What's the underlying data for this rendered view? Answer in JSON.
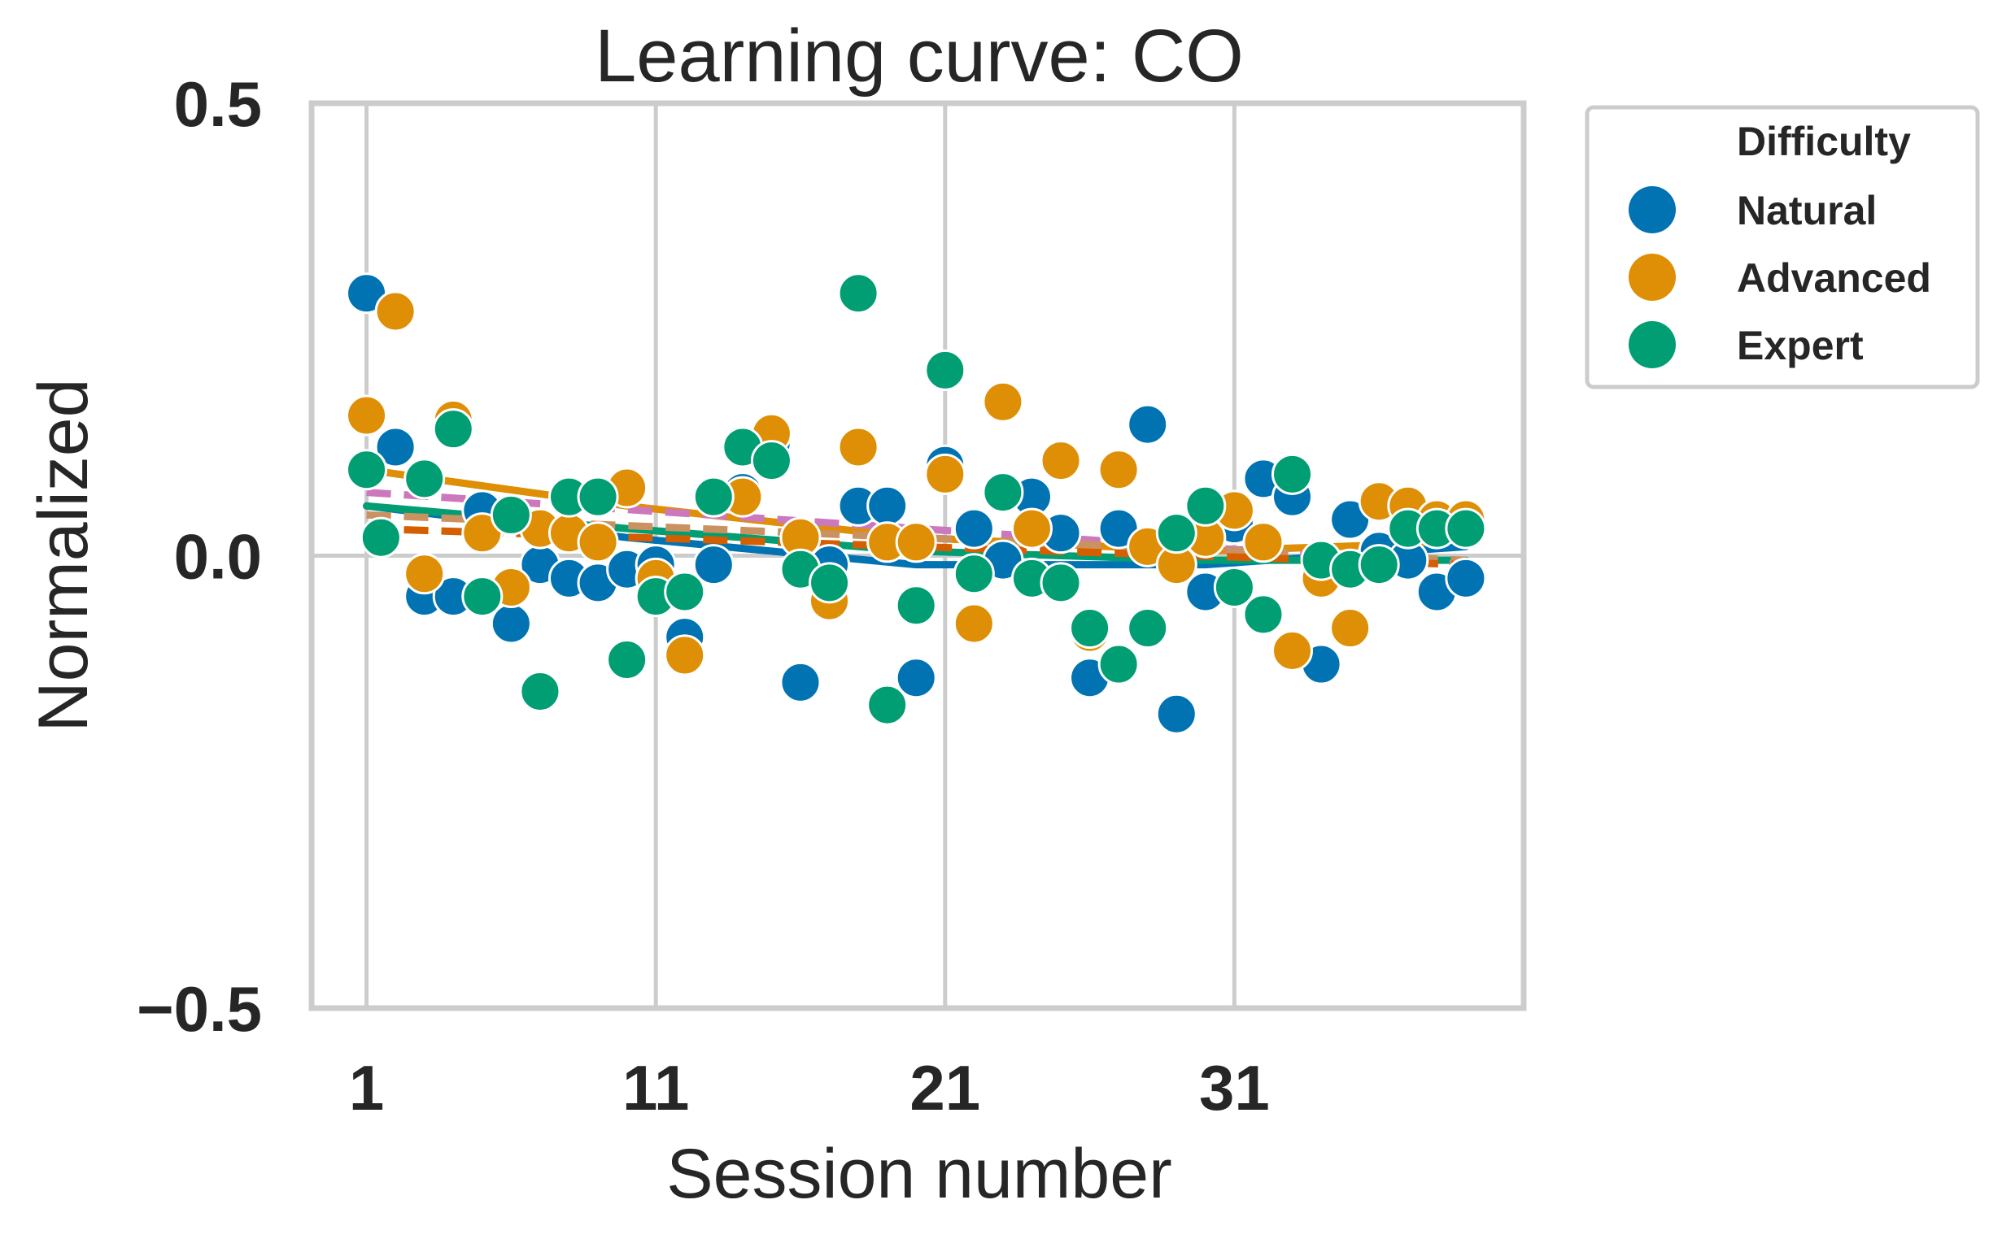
{
  "chart_data": {
    "type": "scatter",
    "title": "Learning curve: CO",
    "xlabel": "Session number",
    "ylabel": "Normalized",
    "xlim": [
      -0.9,
      41.0
    ],
    "ylim": [
      -0.5,
      0.5
    ],
    "xticks": [
      1,
      11,
      21,
      31
    ],
    "yticks": [
      -0.5,
      0.0,
      0.5
    ],
    "ytick_labels": [
      "−0.5",
      "0.0",
      "0.5"
    ],
    "grid": true,
    "legend": {
      "title": "Difficulty",
      "placement": "outside-upper-right"
    },
    "series": [
      {
        "name": "Natural",
        "color": "#0173b2",
        "x": [
          1,
          2,
          3,
          4,
          5,
          6,
          7,
          8,
          9,
          10,
          11,
          12,
          13,
          14,
          15,
          16,
          17,
          18,
          19,
          20,
          21,
          22,
          23,
          24,
          25,
          26,
          27,
          28,
          29,
          30,
          31,
          32,
          33,
          34,
          35,
          36,
          37,
          38,
          39
        ],
        "y": [
          0.29,
          0.12,
          -0.045,
          -0.045,
          0.05,
          -0.075,
          -0.01,
          -0.025,
          -0.03,
          -0.015,
          -0.01,
          -0.09,
          -0.01,
          0.07,
          0.125,
          -0.14,
          -0.01,
          0.055,
          0.055,
          -0.135,
          0.1,
          0.03,
          -0.005,
          0.065,
          0.025,
          -0.135,
          0.03,
          0.145,
          -0.175,
          -0.04,
          0.035,
          0.085,
          0.065,
          -0.12,
          0.04,
          0.005,
          -0.005,
          -0.04,
          -0.025
        ]
      },
      {
        "name": "Advanced",
        "color": "#de8f05",
        "x": [
          1,
          2,
          3,
          4,
          5,
          6,
          7,
          8,
          9,
          10,
          11,
          12,
          13,
          14,
          15,
          16,
          17,
          18,
          19,
          20,
          21,
          22,
          23,
          24,
          25,
          26,
          27,
          28,
          29,
          30,
          31,
          32,
          33,
          34,
          35,
          36,
          37,
          38,
          39
        ],
        "y": [
          0.155,
          0.27,
          -0.02,
          0.15,
          0.025,
          -0.035,
          0.03,
          0.025,
          0.015,
          0.075,
          -0.025,
          -0.11,
          0.065,
          0.065,
          0.135,
          0.02,
          -0.05,
          0.12,
          0.015,
          0.015,
          0.09,
          -0.075,
          0.17,
          0.03,
          0.105,
          -0.085,
          0.095,
          0.01,
          -0.01,
          0.02,
          0.05,
          0.015,
          -0.105,
          -0.025,
          -0.08,
          0.06,
          0.055,
          0.04,
          0.04
        ]
      },
      {
        "name": "Expert",
        "color": "#029e73",
        "x": [
          1,
          1.5,
          3,
          4,
          5,
          6,
          7,
          8,
          9,
          10,
          11,
          12,
          13,
          14,
          15,
          16,
          17,
          18,
          19,
          20,
          21,
          22,
          23,
          24,
          25,
          26,
          27,
          28,
          29,
          30,
          31,
          32,
          33,
          34,
          35,
          36,
          37,
          38,
          39
        ],
        "y": [
          0.095,
          0.02,
          0.085,
          0.14,
          -0.045,
          0.045,
          -0.15,
          0.065,
          0.065,
          -0.115,
          -0.045,
          -0.04,
          0.065,
          0.12,
          0.105,
          -0.015,
          -0.03,
          0.29,
          -0.165,
          -0.055,
          0.205,
          -0.02,
          0.07,
          -0.025,
          -0.03,
          -0.08,
          -0.12,
          -0.08,
          0.025,
          0.055,
          -0.035,
          -0.065,
          0.09,
          -0.005,
          -0.015,
          -0.01,
          0.03,
          0.03,
          0.03
        ]
      }
    ],
    "fit_lines": [
      {
        "style": "solid",
        "color": "#de8f05",
        "x": [
          1,
          10,
          20,
          30,
          39
        ],
        "y": [
          0.095,
          0.055,
          0.02,
          0.005,
          0.015
        ]
      },
      {
        "style": "solid",
        "color": "#0173b2",
        "x": [
          1,
          10,
          20,
          30,
          39
        ],
        "y": [
          0.055,
          0.02,
          -0.01,
          -0.01,
          0.01
        ]
      },
      {
        "style": "solid",
        "color": "#029e73",
        "x": [
          1,
          10,
          20,
          30,
          39
        ],
        "y": [
          0.055,
          0.03,
          0.005,
          -0.005,
          -0.005
        ]
      },
      {
        "style": "dashed",
        "color": "#cc78bc",
        "x": [
          1,
          39
        ],
        "y": [
          0.07,
          -0.01
        ]
      },
      {
        "style": "dashed",
        "color": "#ca9161",
        "x": [
          1,
          39
        ],
        "y": [
          0.045,
          -0.005
        ]
      },
      {
        "style": "dashed",
        "color": "#d55e00",
        "x": [
          1,
          39
        ],
        "y": [
          0.03,
          -0.01
        ]
      }
    ]
  }
}
